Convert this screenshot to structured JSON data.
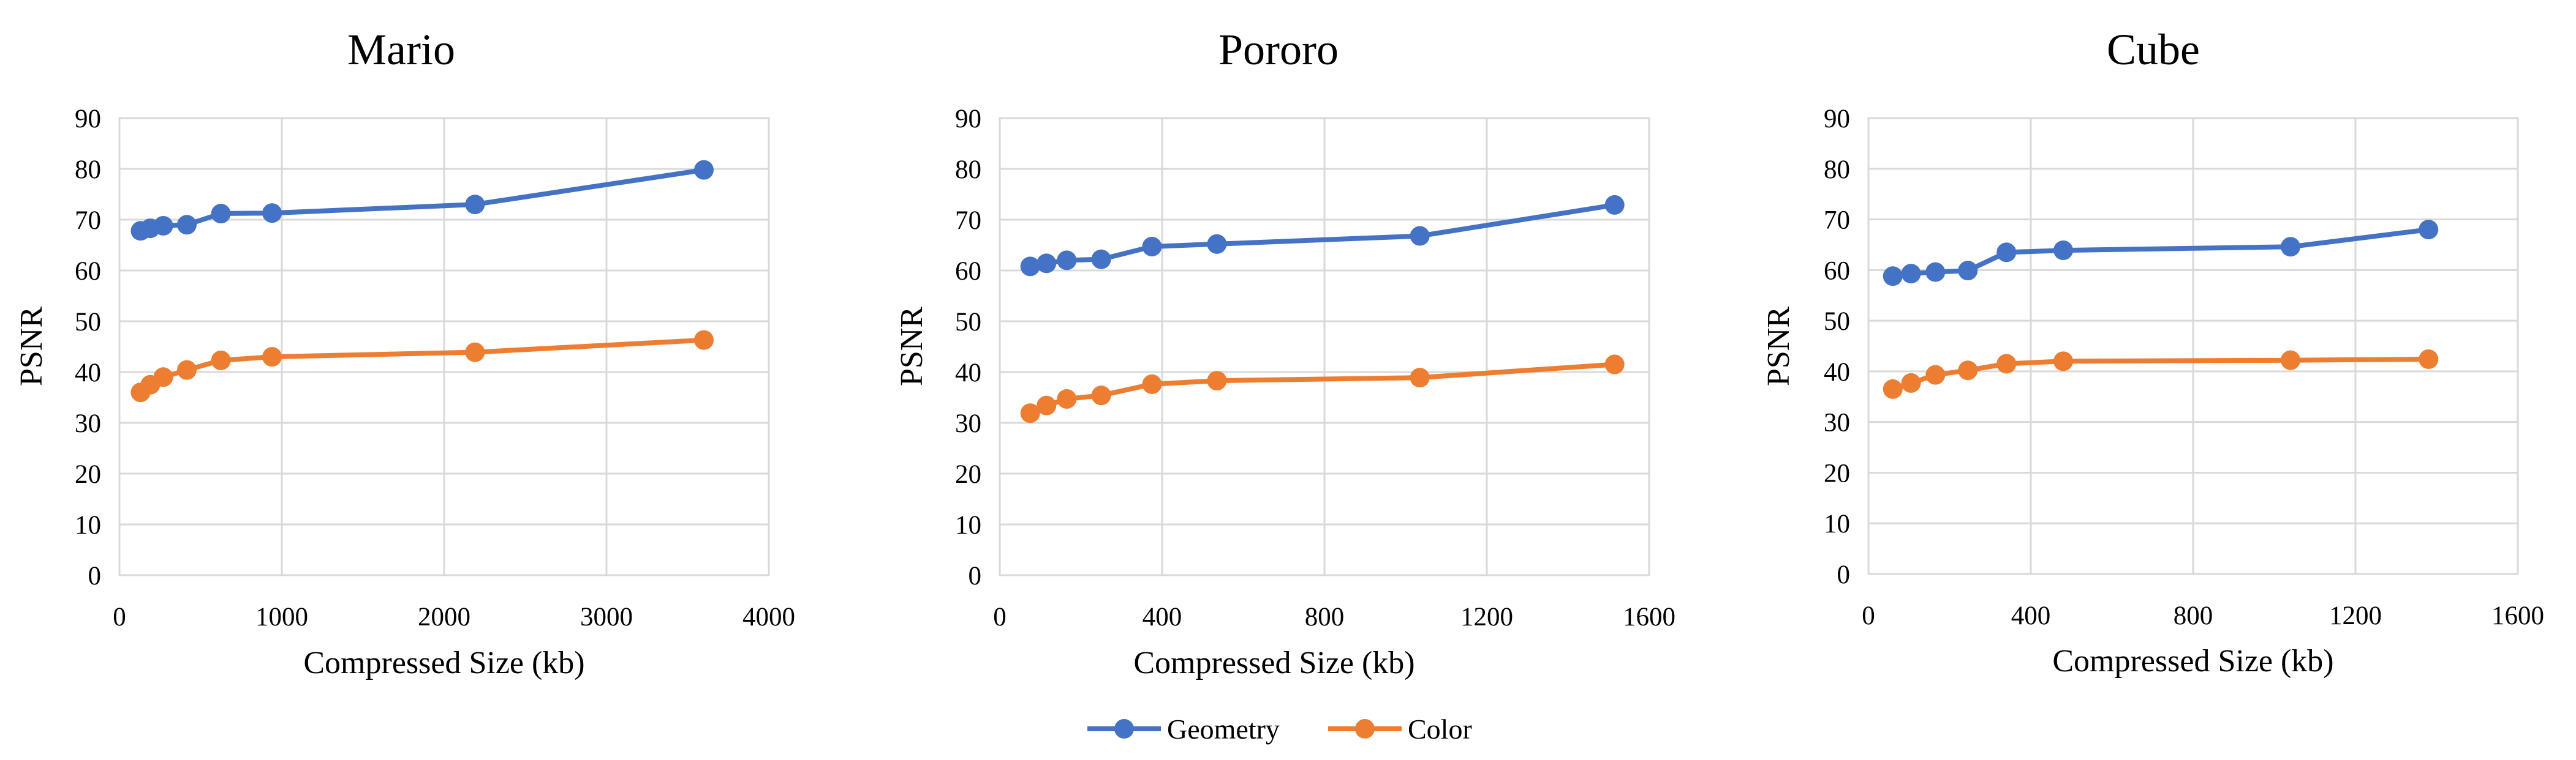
{
  "legend": {
    "entries": [
      {
        "label": "Geometry",
        "color": "#4472C4"
      },
      {
        "label": "Color",
        "color": "#ED7D31"
      }
    ],
    "placement": "bottom-center"
  },
  "chart_data": [
    {
      "type": "line",
      "title": "Mario",
      "xlabel": "Compressed Size (kb)",
      "ylabel": "PSNR",
      "xlim": [
        0,
        4000
      ],
      "ylim": [
        0,
        90
      ],
      "xticks": [
        0,
        1000,
        2000,
        3000,
        4000
      ],
      "yticks": [
        0,
        10,
        20,
        30,
        40,
        50,
        60,
        70,
        80,
        90
      ],
      "grid": true,
      "series": [
        {
          "name": "Geometry",
          "color": "#4472C4",
          "x": [
            130,
            190,
            270,
            415,
            625,
            940,
            2190,
            3600
          ],
          "y": [
            67.8,
            68.3,
            68.8,
            69.0,
            71.2,
            71.3,
            73.0,
            79.8
          ]
        },
        {
          "name": "Color",
          "color": "#ED7D31",
          "x": [
            130,
            190,
            270,
            415,
            625,
            940,
            2190,
            3600
          ],
          "y": [
            36.0,
            37.5,
            39.0,
            40.4,
            42.3,
            43.0,
            43.9,
            46.3
          ]
        }
      ]
    },
    {
      "type": "line",
      "title": "Pororo",
      "xlabel": "Compressed Size (kb)",
      "ylabel": "PSNR",
      "xlim": [
        0,
        1600
      ],
      "ylim": [
        0,
        90
      ],
      "xticks": [
        0,
        400,
        800,
        1200,
        1600
      ],
      "yticks": [
        0,
        10,
        20,
        30,
        40,
        50,
        60,
        70,
        80,
        90
      ],
      "grid": true,
      "series": [
        {
          "name": "Geometry",
          "color": "#4472C4",
          "x": [
            75,
            115,
            165,
            250,
            375,
            535,
            1035,
            1515
          ],
          "y": [
            60.8,
            61.4,
            62.0,
            62.2,
            64.7,
            65.2,
            66.8,
            72.9
          ]
        },
        {
          "name": "Color",
          "color": "#ED7D31",
          "x": [
            75,
            115,
            165,
            250,
            375,
            535,
            1035,
            1515
          ],
          "y": [
            31.9,
            33.4,
            34.7,
            35.4,
            37.6,
            38.3,
            38.9,
            41.5
          ]
        }
      ]
    },
    {
      "type": "line",
      "title": "Cube",
      "xlabel": "Compressed Size (kb)",
      "ylabel": "PSNR",
      "xlim": [
        0,
        1600
      ],
      "ylim": [
        0,
        90
      ],
      "xticks": [
        0,
        400,
        800,
        1200,
        1600
      ],
      "yticks": [
        0,
        10,
        20,
        30,
        40,
        50,
        60,
        70,
        80,
        90
      ],
      "grid": true,
      "series": [
        {
          "name": "Geometry",
          "color": "#4472C4",
          "x": [
            60,
            105,
            165,
            245,
            340,
            480,
            1040,
            1380
          ],
          "y": [
            58.8,
            59.3,
            59.6,
            59.9,
            63.5,
            63.9,
            64.6,
            68.0
          ]
        },
        {
          "name": "Color",
          "color": "#ED7D31",
          "x": [
            60,
            105,
            165,
            245,
            340,
            480,
            1040,
            1380
          ],
          "y": [
            36.5,
            37.7,
            39.3,
            40.2,
            41.5,
            42.0,
            42.2,
            42.4
          ]
        }
      ]
    }
  ]
}
